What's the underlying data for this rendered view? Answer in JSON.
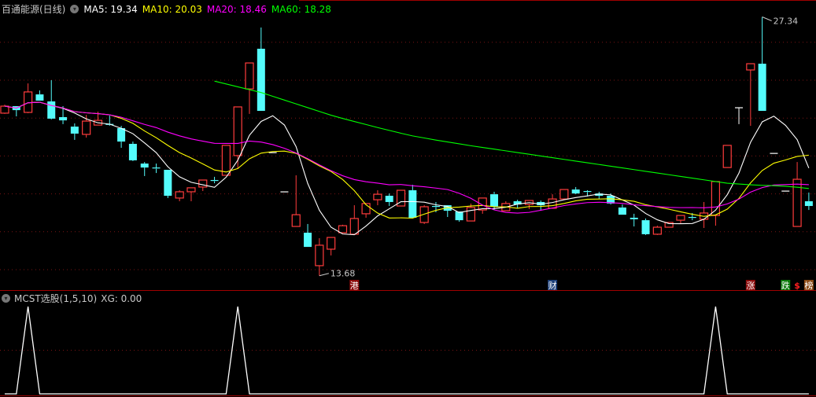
{
  "header": {
    "title": "百通能源(日线)",
    "menu_icon": "chevron-down-circle-icon",
    "ma5_label": "MA5: 19.34",
    "ma10_label": "MA10: 20.03",
    "ma20_label": "MA20: 18.46",
    "ma60_label": "MA60: 18.28"
  },
  "indicator_panel": {
    "title": "MCST选股(1,5,10)",
    "xg_label": "XG: 0.00"
  },
  "colors": {
    "up": "#ff3c3c",
    "down": "#54fcfc",
    "flat": "#ffffff",
    "ma5": "#ffffff",
    "ma10": "#ffff00",
    "ma20": "#ff00ff",
    "ma60": "#00ff00",
    "grid": "#7a1414",
    "separator": "#a00000"
  },
  "chart_data": [
    {
      "type": "candlestick",
      "title": "",
      "ylim": [
        13.2,
        28.0
      ],
      "grid": true,
      "grid_levels": [
        14,
        16,
        18,
        20,
        22,
        24,
        26
      ],
      "ohlc_fields": [
        "open",
        "high",
        "low",
        "close"
      ],
      "candles": [
        [
          22.26,
          22.71,
          22.22,
          22.63
        ],
        [
          22.63,
          22.63,
          22.09,
          22.42
        ],
        [
          22.3,
          23.83,
          22.26,
          23.38
        ],
        [
          23.25,
          23.46,
          22.92,
          22.92
        ],
        [
          22.88,
          24.0,
          21.93,
          21.97
        ],
        [
          22.05,
          22.63,
          21.68,
          21.88
        ],
        [
          21.55,
          21.72,
          20.85,
          21.18
        ],
        [
          21.14,
          22.17,
          20.97,
          21.84
        ],
        [
          21.63,
          22.34,
          21.63,
          21.88
        ],
        [
          21.67,
          22.13,
          21.59,
          21.63
        ],
        [
          21.47,
          21.59,
          20.43,
          20.76
        ],
        [
          20.64,
          20.76,
          19.73,
          19.77
        ],
        [
          19.6,
          19.68,
          18.94,
          19.39
        ],
        [
          19.37,
          19.6,
          19.1,
          19.33
        ],
        [
          19.27,
          19.27,
          17.78,
          17.9
        ],
        [
          17.78,
          18.19,
          17.61,
          18.11
        ],
        [
          18.11,
          18.32,
          17.61,
          18.32
        ],
        [
          18.36,
          18.73,
          18.15,
          18.73
        ],
        [
          18.71,
          18.9,
          18.56,
          18.67
        ],
        [
          18.98,
          20.56,
          18.98,
          20.56
        ],
        [
          20.02,
          22.59,
          19.31,
          22.59
        ],
        [
          23.54,
          24.91,
          22.22,
          24.91
        ],
        [
          25.66,
          26.78,
          22.38,
          22.38
        ],
        [
          20.18,
          20.18,
          20.18,
          20.18
        ],
        [
          18.11,
          18.11,
          18.11,
          18.11
        ],
        [
          16.28,
          18.98,
          16.28,
          16.9
        ],
        [
          15.95,
          16.41,
          15.2,
          15.2
        ],
        [
          14.21,
          15.66,
          13.68,
          15.29
        ],
        [
          15.08,
          15.7,
          14.75,
          15.7
        ],
        [
          15.95,
          16.37,
          15.95,
          16.32
        ],
        [
          15.87,
          17.4,
          15.87,
          16.7
        ],
        [
          16.95,
          17.49,
          16.74,
          17.49
        ],
        [
          17.69,
          18.19,
          17.4,
          17.98
        ],
        [
          17.9,
          18.02,
          17.36,
          17.57
        ],
        [
          17.36,
          18.19,
          17.36,
          18.19
        ],
        [
          18.19,
          18.48,
          16.74,
          16.74
        ],
        [
          16.49,
          17.4,
          16.41,
          17.32
        ],
        [
          17.34,
          17.57,
          17.03,
          17.3
        ],
        [
          17.4,
          17.4,
          16.78,
          17.11
        ],
        [
          17.07,
          17.07,
          16.53,
          16.61
        ],
        [
          16.57,
          17.49,
          16.57,
          17.28
        ],
        [
          17.15,
          17.78,
          16.95,
          17.78
        ],
        [
          17.98,
          18.11,
          17.15,
          17.32
        ],
        [
          17.11,
          17.61,
          17.11,
          17.49
        ],
        [
          17.61,
          17.69,
          17.24,
          17.44
        ],
        [
          17.44,
          17.65,
          17.2,
          17.65
        ],
        [
          17.57,
          17.65,
          17.11,
          17.4
        ],
        [
          17.24,
          17.98,
          17.24,
          17.73
        ],
        [
          17.73,
          18.23,
          17.73,
          18.23
        ],
        [
          18.23,
          18.36,
          17.98,
          18.02
        ],
        [
          18.13,
          18.19,
          17.86,
          18.09
        ],
        [
          18.02,
          18.11,
          17.73,
          17.9
        ],
        [
          17.9,
          18.02,
          17.44,
          17.49
        ],
        [
          17.28,
          17.44,
          16.9,
          16.9
        ],
        [
          16.74,
          16.95,
          16.28,
          16.66
        ],
        [
          16.61,
          16.7,
          15.83,
          15.87
        ],
        [
          15.87,
          16.32,
          15.83,
          16.24
        ],
        [
          16.24,
          16.49,
          16.24,
          16.49
        ],
        [
          16.61,
          16.86,
          16.41,
          16.86
        ],
        [
          16.76,
          16.99,
          16.61,
          16.72
        ],
        [
          16.66,
          17.57,
          16.2,
          16.99
        ],
        [
          16.86,
          18.65,
          16.32,
          18.65
        ],
        [
          19.39,
          20.56,
          19.39,
          20.56
        ],
        [
          22.55,
          22.55,
          21.68,
          22.55
        ],
        [
          24.54,
          24.87,
          21.59,
          24.87
        ],
        [
          24.87,
          27.34,
          22.38,
          22.38
        ],
        [
          20.14,
          20.14,
          20.14,
          20.14
        ],
        [
          18.15,
          18.15,
          18.15,
          18.15
        ],
        [
          16.28,
          19.68,
          16.28,
          18.77
        ],
        [
          17.61,
          18.07,
          17.15,
          17.36
        ]
      ],
      "moving_averages": [
        {
          "name": "MA5",
          "period": 5
        },
        {
          "name": "MA10",
          "period": 10
        },
        {
          "name": "MA20",
          "period": 20
        },
        {
          "name": "MA60",
          "start_index": 18,
          "values": [
            23.95,
            23.8,
            23.65,
            23.5,
            23.35,
            23.15,
            22.95,
            22.75,
            22.55,
            22.35,
            22.15,
            21.98,
            21.82,
            21.66,
            21.5,
            21.35,
            21.2,
            21.06,
            20.95,
            20.84,
            20.74,
            20.64,
            20.54,
            20.45,
            20.36,
            20.27,
            20.18,
            20.09,
            20.0,
            19.91,
            19.82,
            19.73,
            19.64,
            19.55,
            19.46,
            19.37,
            19.28,
            19.19,
            19.1,
            19.01,
            18.92,
            18.83,
            18.74,
            18.65,
            18.56,
            18.52,
            18.48,
            18.45,
            18.43,
            18.4,
            18.35,
            18.28
          ]
        }
      ],
      "annotations": [
        {
          "text": "27.34",
          "index": 65,
          "value": 27.34
        },
        {
          "text": "13.68",
          "index": 27,
          "value": 13.68
        }
      ],
      "event_markers": [
        {
          "text": "港",
          "index": 30,
          "bg": "#8b0a0a",
          "fg": "#ffffff"
        },
        {
          "text": "财",
          "index": 47,
          "bg": "#1c3f78",
          "fg": "#ffffff"
        },
        {
          "text": "涨",
          "index": 64,
          "bg": "#8b0a0a",
          "fg": "#ffffff"
        },
        {
          "text": "跌",
          "index": 67,
          "bg": "#0a7a0a",
          "fg": "#ffffff"
        },
        {
          "text": "$",
          "index": 68,
          "bg": "",
          "fg": "#ff2020"
        },
        {
          "text": "榜",
          "index": 69,
          "bg": "#8a4a14",
          "fg": "#ffffff"
        }
      ]
    },
    {
      "type": "line",
      "series": [
        {
          "name": "XG",
          "values": [
            0,
            0,
            1,
            0,
            0,
            0,
            0,
            0,
            0,
            0,
            0,
            0,
            0,
            0,
            0,
            0,
            0,
            0,
            0,
            0,
            1,
            0,
            0,
            0,
            0,
            0,
            0,
            0,
            0,
            0,
            0,
            0,
            0,
            0,
            0,
            0,
            0,
            0,
            0,
            0,
            0,
            0,
            0,
            0,
            0,
            0,
            0,
            0,
            0,
            0,
            0,
            0,
            0,
            0,
            0,
            0,
            0,
            0,
            0,
            0,
            0,
            1,
            0,
            0,
            0,
            0,
            0,
            0,
            0,
            0
          ]
        }
      ],
      "ylim": [
        0,
        1
      ],
      "grid_levels": [
        0.5
      ]
    }
  ]
}
